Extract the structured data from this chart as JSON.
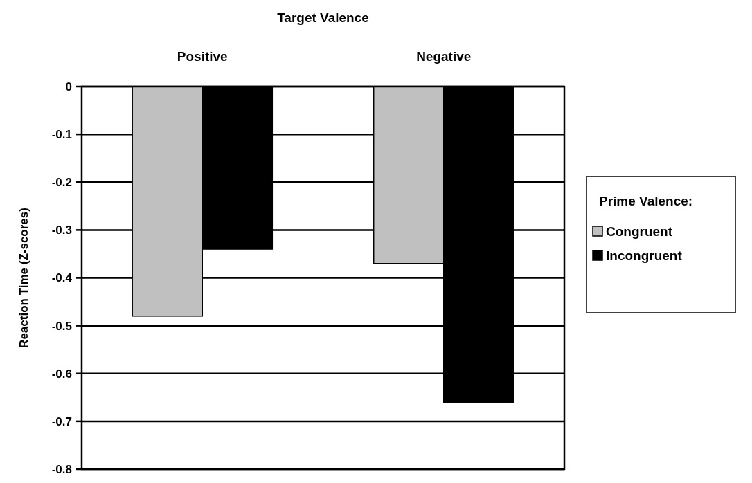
{
  "chart_data": {
    "type": "bar",
    "title": "Target Valence",
    "ylabel": "Reaction Time (Z-scores)",
    "legend_title": "Prime Valence:",
    "categories": [
      "Positive",
      "Negative"
    ],
    "series": [
      {
        "name": "Congruent",
        "color": "#c0c0c0",
        "values": [
          -0.48,
          -0.37
        ]
      },
      {
        "name": "Incongruent",
        "color": "#000000",
        "values": [
          -0.34,
          -0.66
        ]
      }
    ],
    "ylim": [
      -0.8,
      0
    ],
    "yticks": [
      0,
      -0.1,
      -0.2,
      -0.3,
      -0.4,
      -0.5,
      -0.6,
      -0.7,
      -0.8
    ],
    "grid": "y",
    "legend": "right"
  }
}
